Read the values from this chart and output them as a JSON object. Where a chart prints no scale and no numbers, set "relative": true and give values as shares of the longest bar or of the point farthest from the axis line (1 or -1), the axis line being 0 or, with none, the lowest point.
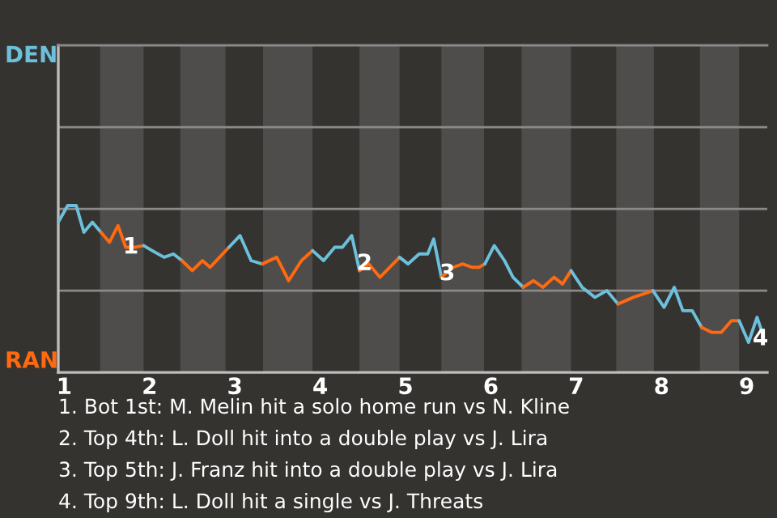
{
  "chart_data": {
    "type": "line",
    "relative": true,
    "xlim": [
      0.93,
      9.24
    ],
    "xticks": [
      1,
      2,
      3,
      4,
      5,
      6,
      7,
      8,
      9
    ],
    "marker": "none",
    "line_style": "solid",
    "ref_lines": [
      {
        "axis": "y",
        "value": 0.49,
        "color": "#8a8a8a"
      },
      {
        "axis": "y",
        "value": 0.98,
        "color": "#8a8a8a"
      },
      {
        "axis": "y",
        "value": 1.47,
        "color": "#8a8a8a"
      }
    ],
    "bands": [
      {
        "axis": "x",
        "from": 1.42,
        "to": 1.93,
        "color": "#4f4d4b"
      },
      {
        "axis": "x",
        "from": 2.36,
        "to": 2.89,
        "color": "#4f4d4b"
      },
      {
        "axis": "x",
        "from": 3.33,
        "to": 3.91,
        "color": "#4f4d4b"
      },
      {
        "axis": "x",
        "from": 4.46,
        "to": 4.93,
        "color": "#4f4d4b"
      },
      {
        "axis": "x",
        "from": 5.42,
        "to": 5.92,
        "color": "#4f4d4b"
      },
      {
        "axis": "x",
        "from": 6.36,
        "to": 6.94,
        "color": "#4f4d4b"
      },
      {
        "axis": "x",
        "from": 7.47,
        "to": 7.91,
        "color": "#4f4d4b"
      },
      {
        "axis": "x",
        "from": 8.45,
        "to": 8.91,
        "color": "#4f4d4b"
      }
    ],
    "series": [
      {
        "name": "DEN",
        "color": "#6cc0dc",
        "x": [
          0.93,
          1.04,
          1.14,
          1.23,
          1.33,
          1.43
        ],
        "values": [
          0.9,
          1,
          1,
          0.84,
          0.9,
          0.84
        ]
      },
      {
        "name": "RAN",
        "color": "#ff6a10",
        "x": [
          1.43,
          1.53,
          1.63,
          1.72,
          1.83,
          1.93
        ],
        "values": [
          0.84,
          0.78,
          0.88,
          0.75,
          0.75,
          0.76
        ]
      },
      {
        "color": "#6cc0dc",
        "x": [
          1.93,
          2.03,
          2.17,
          2.28,
          2.38
        ],
        "values": [
          0.76,
          0.73,
          0.69,
          0.71,
          0.67
        ]
      },
      {
        "color": "#ff6a10",
        "x": [
          2.38,
          2.5,
          2.62,
          2.71,
          2.82,
          2.93
        ],
        "values": [
          0.67,
          0.61,
          0.67,
          0.63,
          0.69,
          0.75
        ]
      },
      {
        "color": "#6cc0dc",
        "x": [
          2.93,
          3.06,
          3.19,
          3.32
        ],
        "values": [
          0.75,
          0.82,
          0.67,
          0.65
        ]
      },
      {
        "color": "#ff6a10",
        "x": [
          3.32,
          3.49,
          3.63,
          3.78,
          3.91
        ],
        "values": [
          0.65,
          0.69,
          0.55,
          0.67,
          0.73
        ]
      },
      {
        "color": "#6cc0dc",
        "x": [
          3.91,
          4.04,
          4.17,
          4.26,
          4.37,
          4.46
        ],
        "values": [
          0.73,
          0.67,
          0.75,
          0.75,
          0.82,
          0.61
        ]
      },
      {
        "color": "#ff6a10",
        "x": [
          4.46,
          4.57,
          4.7,
          4.93
        ],
        "values": [
          0.61,
          0.65,
          0.57,
          0.69
        ]
      },
      {
        "color": "#6cc0dc",
        "x": [
          4.93,
          5.03,
          5.16,
          5.26,
          5.33,
          5.42
        ],
        "values": [
          0.69,
          0.65,
          0.71,
          0.71,
          0.8,
          0.57
        ]
      },
      {
        "color": "#ff6a10",
        "x": [
          5.42,
          5.56,
          5.67,
          5.78,
          5.86,
          5.93
        ],
        "values": [
          0.57,
          0.63,
          0.65,
          0.63,
          0.63,
          0.65
        ]
      },
      {
        "color": "#6cc0dc",
        "x": [
          5.93,
          6.04,
          6.16,
          6.26,
          6.38
        ],
        "values": [
          0.65,
          0.76,
          0.67,
          0.57,
          0.51
        ]
      },
      {
        "color": "#ff6a10",
        "x": [
          6.38,
          6.5,
          6.61,
          6.74,
          6.84,
          6.94
        ],
        "values": [
          0.51,
          0.55,
          0.51,
          0.57,
          0.53,
          0.61
        ]
      },
      {
        "color": "#6cc0dc",
        "x": [
          6.94,
          7.07,
          7.22,
          7.36,
          7.49
        ],
        "values": [
          0.61,
          0.51,
          0.45,
          0.49,
          0.41
        ]
      },
      {
        "color": "#ff6a10",
        "x": [
          7.49,
          7.67,
          7.9
        ],
        "values": [
          0.41,
          0.45,
          0.49
        ]
      },
      {
        "color": "#6cc0dc",
        "x": [
          7.9,
          8.03,
          8.15,
          8.25,
          8.36,
          8.47
        ],
        "values": [
          0.49,
          0.39,
          0.51,
          0.37,
          0.37,
          0.27
        ]
      },
      {
        "color": "#ff6a10",
        "x": [
          8.47,
          8.59,
          8.7,
          8.82,
          8.91
        ],
        "values": [
          0.27,
          0.24,
          0.24,
          0.31,
          0.31
        ]
      },
      {
        "color": "#6cc0dc",
        "x": [
          8.91,
          9.02,
          9.12,
          9.18
        ],
        "values": [
          0.31,
          0.18,
          0.33,
          0.24
        ]
      }
    ],
    "annotations": [
      {
        "text": "1",
        "x": 1.78,
        "y": 0.75
      },
      {
        "text": "2",
        "x": 4.52,
        "y": 0.65
      },
      {
        "text": "3",
        "x": 5.49,
        "y": 0.59
      },
      {
        "text": "4",
        "x": 9.16,
        "y": 0.2
      },
      "1. Bot 1st: M. Melin hit a solo home run vs N. Kline",
      "2. Top 4th: L. Doll hit into a double play vs J. Lira",
      "3. Top 5th: J. Franz hit into a double play vs J. Lira",
      "4. Top 9th: L. Doll hit a single vs J. Threats"
    ]
  }
}
